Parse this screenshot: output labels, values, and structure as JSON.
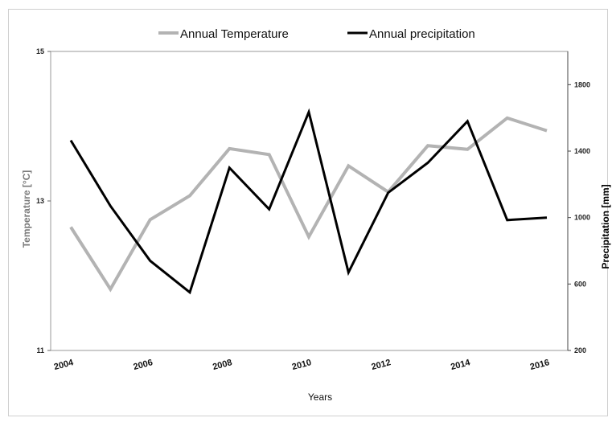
{
  "chart_data": {
    "type": "line",
    "xlabel": "Years",
    "ylabel_left": "Temperature [°C]",
    "ylabel_right": "Precipitation [mm]",
    "ylim_left": [
      11,
      15
    ],
    "ylim_right": [
      200,
      2000
    ],
    "yticks_left": [
      11,
      13,
      15
    ],
    "yticks_right": [
      200,
      600,
      1000,
      1400,
      1800
    ],
    "xlim": [
      2004,
      2016
    ],
    "xticks": [
      2004,
      2006,
      2008,
      2010,
      2012,
      2014,
      2016
    ],
    "grid": false,
    "legend_position": "top-center",
    "x": [
      2004,
      2005,
      2006,
      2007,
      2008,
      2009,
      2010,
      2011,
      2012,
      2013,
      2014,
      2015,
      2016
    ],
    "series": [
      {
        "name": "Annual Temperature",
        "axis": "left",
        "color": "#b3b3b3",
        "values": [
          12.65,
          11.82,
          12.75,
          13.07,
          13.7,
          13.62,
          12.52,
          13.47,
          13.12,
          13.74,
          13.69,
          14.11,
          13.94
        ]
      },
      {
        "name": "Annual precipitation",
        "axis": "right",
        "color": "#000000",
        "values": [
          1465,
          1070,
          740,
          550,
          1300,
          1050,
          1635,
          670,
          1150,
          1330,
          1580,
          985,
          1000
        ]
      }
    ]
  }
}
